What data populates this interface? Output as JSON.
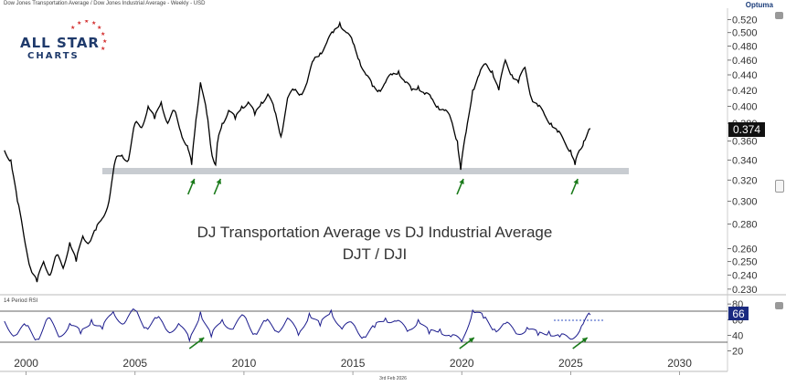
{
  "header": {
    "title": "Dow Jones Transportation Average / Dow Jones Industrial Average - Weekly - USD",
    "brand": "Optuma"
  },
  "logo": {
    "line1": "ALL STAR",
    "line2": "CHARTS"
  },
  "annotations": {
    "line1": "DJ Transportation Average vs DJ Industrial Average",
    "line2": "DJT / DJI"
  },
  "footer": {
    "date": "3rd Feb 2026"
  },
  "colors": {
    "price_line": "#000000",
    "rsi_line": "#1a1a8c",
    "support_band": "#c8ccd1",
    "arrow": "#1a7a1a",
    "price_badge": "#111111",
    "rsi_badge": "#1a2a80"
  },
  "icons": [
    "lock-icon",
    "collapse-icon",
    "optuma-logo-icon",
    "star-ring-icon"
  ],
  "chart_data": [
    {
      "type": "line",
      "title": "Dow Jones Transportation Average / Dow Jones Industrial Average - Weekly - USD",
      "scale": "log",
      "xlim": [
        1998.8,
        2032.2
      ],
      "ylim": [
        0.228,
        0.528
      ],
      "x_ticks": [
        "2000",
        "2005",
        "2010",
        "2015",
        "2020",
        "2025",
        "2030"
      ],
      "y_ticks": [
        "0.520",
        "0.500",
        "0.480",
        "0.460",
        "0.440",
        "0.420",
        "0.400",
        "0.380",
        "0.360",
        "0.340",
        "0.320",
        "0.300",
        "0.280",
        "0.260",
        "0.250",
        "0.240",
        "0.230"
      ],
      "last_value": "0.374",
      "support_level": 0.33,
      "x": [
        1999.0,
        1999.3,
        1999.6,
        1999.9,
        2000.2,
        2000.5,
        2000.8,
        2001.1,
        2001.4,
        2001.7,
        2002.0,
        2002.3,
        2002.6,
        2002.9,
        2003.2,
        2003.5,
        2003.8,
        2004.1,
        2004.4,
        2004.7,
        2005.0,
        2005.3,
        2005.6,
        2005.9,
        2006.2,
        2006.5,
        2006.8,
        2007.1,
        2007.4,
        2007.6,
        2007.8,
        2008.0,
        2008.3,
        2008.5,
        2008.7,
        2008.8,
        2009.0,
        2009.3,
        2009.6,
        2009.9,
        2010.2,
        2010.5,
        2010.8,
        2011.1,
        2011.4,
        2011.7,
        2012.0,
        2012.3,
        2012.6,
        2012.9,
        2013.2,
        2013.5,
        2013.8,
        2014.1,
        2014.4,
        2014.7,
        2015.0,
        2015.3,
        2015.6,
        2015.9,
        2016.2,
        2016.5,
        2016.8,
        2017.1,
        2017.4,
        2017.7,
        2018.0,
        2018.3,
        2018.6,
        2018.9,
        2019.2,
        2019.5,
        2019.8,
        2019.95,
        2020.2,
        2020.5,
        2020.8,
        2021.1,
        2021.4,
        2021.7,
        2022.0,
        2022.3,
        2022.6,
        2022.9,
        2023.2,
        2023.5,
        2023.8,
        2024.1,
        2024.4,
        2024.7,
        2025.0,
        2025.2,
        2025.4,
        2025.6,
        2025.9
      ],
      "y": [
        0.35,
        0.34,
        0.3,
        0.27,
        0.245,
        0.235,
        0.25,
        0.24,
        0.255,
        0.245,
        0.265,
        0.25,
        0.27,
        0.265,
        0.275,
        0.285,
        0.3,
        0.34,
        0.345,
        0.34,
        0.38,
        0.375,
        0.4,
        0.385,
        0.405,
        0.38,
        0.395,
        0.37,
        0.355,
        0.335,
        0.385,
        0.43,
        0.39,
        0.35,
        0.335,
        0.36,
        0.38,
        0.395,
        0.385,
        0.4,
        0.405,
        0.39,
        0.405,
        0.415,
        0.395,
        0.365,
        0.41,
        0.42,
        0.415,
        0.43,
        0.46,
        0.47,
        0.485,
        0.5,
        0.515,
        0.5,
        0.485,
        0.46,
        0.44,
        0.425,
        0.42,
        0.43,
        0.44,
        0.445,
        0.43,
        0.42,
        0.425,
        0.415,
        0.41,
        0.4,
        0.395,
        0.385,
        0.36,
        0.33,
        0.37,
        0.42,
        0.44,
        0.455,
        0.445,
        0.42,
        0.46,
        0.44,
        0.43,
        0.45,
        0.41,
        0.4,
        0.39,
        0.38,
        0.37,
        0.36,
        0.35,
        0.335,
        0.35,
        0.36,
        0.374
      ]
    },
    {
      "type": "line",
      "title": "14 Period RSI",
      "ylim": [
        16,
        86
      ],
      "y_ticks": [
        "80",
        "60",
        "40",
        "20"
      ],
      "bands": [
        70,
        30
      ],
      "last_value": "66",
      "x": [
        1999.0,
        1999.5,
        2000.0,
        2000.5,
        2001.0,
        2001.5,
        2002.0,
        2002.5,
        2003.0,
        2003.5,
        2004.0,
        2004.5,
        2005.0,
        2005.5,
        2006.0,
        2006.5,
        2007.0,
        2007.5,
        2008.0,
        2008.5,
        2009.0,
        2009.5,
        2010.0,
        2010.5,
        2011.0,
        2011.5,
        2012.0,
        2012.5,
        2013.0,
        2013.5,
        2014.0,
        2014.5,
        2015.0,
        2015.5,
        2016.0,
        2016.5,
        2017.0,
        2017.5,
        2018.0,
        2018.5,
        2019.0,
        2019.5,
        2020.0,
        2020.5,
        2021.0,
        2021.5,
        2022.0,
        2022.5,
        2023.0,
        2023.5,
        2024.0,
        2024.5,
        2025.0,
        2025.5,
        2025.9
      ],
      "y": [
        58,
        40,
        52,
        35,
        62,
        38,
        55,
        42,
        60,
        48,
        70,
        55,
        72,
        50,
        62,
        45,
        55,
        33,
        70,
        38,
        60,
        48,
        65,
        42,
        58,
        45,
        62,
        40,
        68,
        52,
        72,
        48,
        55,
        38,
        50,
        62,
        58,
        45,
        60,
        42,
        48,
        38,
        32,
        72,
        62,
        48,
        55,
        42,
        50,
        40,
        45,
        38,
        35,
        52,
        66
      ]
    }
  ]
}
